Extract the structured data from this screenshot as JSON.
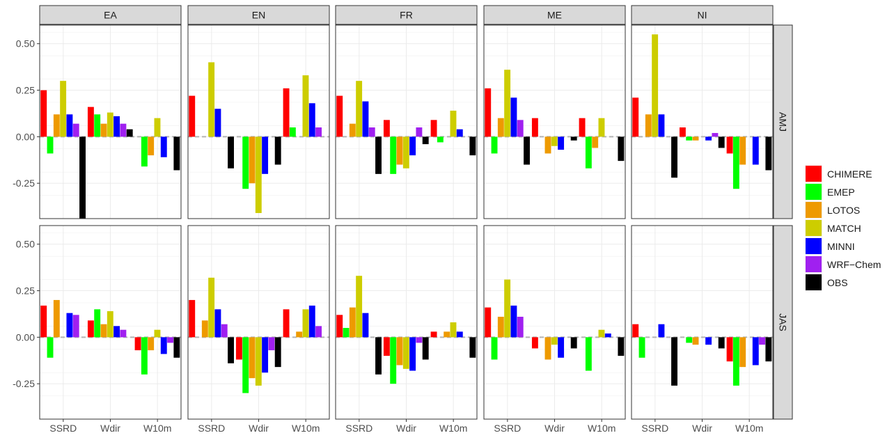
{
  "chart_data": {
    "type": "bar",
    "facet_columns": [
      "EA",
      "EN",
      "FR",
      "ME",
      "NI"
    ],
    "facet_rows": [
      "AMJ",
      "JAS"
    ],
    "categories": [
      "SSRD",
      "Wdir",
      "W10m"
    ],
    "series_names": [
      "CHIMERE",
      "EMEP",
      "LOTOS",
      "MATCH",
      "MINNI",
      "WRF−Chem",
      "OBS"
    ],
    "colors": {
      "CHIMERE": "#ff0000",
      "EMEP": "#00ff00",
      "LOTOS": "#ee9a00",
      "MATCH": "#cdcd00",
      "MINNI": "#0000ff",
      "WRF−Chem": "#a020f0",
      "OBS": "#000000"
    },
    "y_ticks": [
      0.5,
      0.25,
      0.0,
      -0.25
    ],
    "y_tick_labels": [
      "0.50",
      "0.25",
      "0.00",
      "-0.25"
    ],
    "ylim": [
      -0.44,
      0.6
    ],
    "reference_line": 0,
    "grid": true,
    "legend_position": "right",
    "panels": {
      "AMJ": {
        "EA": {
          "SSRD": [
            0.25,
            -0.09,
            0.12,
            0.3,
            0.12,
            0.07,
            -0.44
          ],
          "Wdir": [
            0.16,
            0.12,
            0.07,
            0.13,
            0.11,
            0.07,
            0.04
          ],
          "W10m": [
            null,
            -0.16,
            -0.1,
            0.1,
            -0.11,
            null,
            -0.18
          ]
        },
        "EN": {
          "SSRD": [
            0.22,
            null,
            null,
            0.4,
            0.15,
            null,
            -0.17
          ],
          "Wdir": [
            null,
            -0.28,
            -0.25,
            -0.41,
            -0.2,
            null,
            -0.15
          ],
          "W10m": [
            0.26,
            0.05,
            null,
            0.33,
            0.18,
            0.05,
            null
          ]
        },
        "FR": {
          "SSRD": [
            0.22,
            null,
            0.07,
            0.3,
            0.19,
            0.05,
            -0.2
          ],
          "Wdir": [
            0.09,
            -0.2,
            -0.15,
            -0.17,
            -0.1,
            0.05,
            -0.04
          ],
          "W10m": [
            0.09,
            -0.03,
            null,
            0.14,
            0.04,
            null,
            -0.1
          ]
        },
        "ME": {
          "SSRD": [
            0.26,
            -0.09,
            0.1,
            0.36,
            0.21,
            0.09,
            -0.15
          ],
          "Wdir": [
            0.1,
            null,
            -0.09,
            -0.05,
            -0.07,
            null,
            -0.02
          ],
          "W10m": [
            0.1,
            -0.17,
            -0.06,
            0.1,
            null,
            null,
            -0.13
          ]
        },
        "NI": {
          "SSRD": [
            0.21,
            null,
            0.12,
            0.55,
            0.12,
            null,
            -0.22
          ],
          "Wdir": [
            0.05,
            -0.02,
            -0.02,
            null,
            -0.02,
            0.02,
            -0.06
          ],
          "W10m": [
            -0.09,
            -0.28,
            -0.15,
            null,
            -0.15,
            null,
            -0.18
          ]
        }
      },
      "JAS": {
        "EA": {
          "SSRD": [
            0.17,
            -0.11,
            0.2,
            null,
            0.13,
            0.12,
            null
          ],
          "Wdir": [
            0.09,
            0.15,
            0.07,
            0.14,
            0.06,
            0.04,
            null
          ],
          "W10m": [
            -0.07,
            -0.2,
            -0.07,
            0.04,
            -0.09,
            -0.03,
            -0.11
          ]
        },
        "EN": {
          "SSRD": [
            0.2,
            null,
            0.09,
            0.32,
            0.15,
            0.07,
            -0.14
          ],
          "Wdir": [
            -0.12,
            -0.3,
            -0.22,
            -0.26,
            -0.19,
            -0.07,
            -0.16
          ],
          "W10m": [
            0.15,
            null,
            0.03,
            0.15,
            0.17,
            0.06,
            null
          ]
        },
        "FR": {
          "SSRD": [
            0.12,
            0.05,
            0.16,
            0.33,
            0.13,
            null,
            -0.2
          ],
          "Wdir": [
            -0.1,
            -0.25,
            -0.15,
            -0.17,
            -0.18,
            -0.03,
            -0.12
          ],
          "W10m": [
            0.03,
            null,
            0.03,
            0.08,
            0.03,
            null,
            -0.11
          ]
        },
        "ME": {
          "SSRD": [
            0.16,
            -0.12,
            0.11,
            0.31,
            0.17,
            0.11,
            null
          ],
          "Wdir": [
            -0.06,
            null,
            -0.12,
            -0.04,
            -0.11,
            null,
            -0.06
          ],
          "W10m": [
            null,
            -0.18,
            null,
            0.04,
            0.02,
            null,
            -0.1
          ]
        },
        "NI": {
          "SSRD": [
            0.07,
            -0.11,
            null,
            null,
            0.07,
            null,
            -0.26
          ],
          "Wdir": [
            null,
            -0.03,
            -0.04,
            null,
            -0.04,
            null,
            -0.06
          ],
          "W10m": [
            -0.13,
            -0.26,
            -0.16,
            null,
            -0.15,
            -0.04,
            -0.13
          ]
        }
      }
    }
  }
}
